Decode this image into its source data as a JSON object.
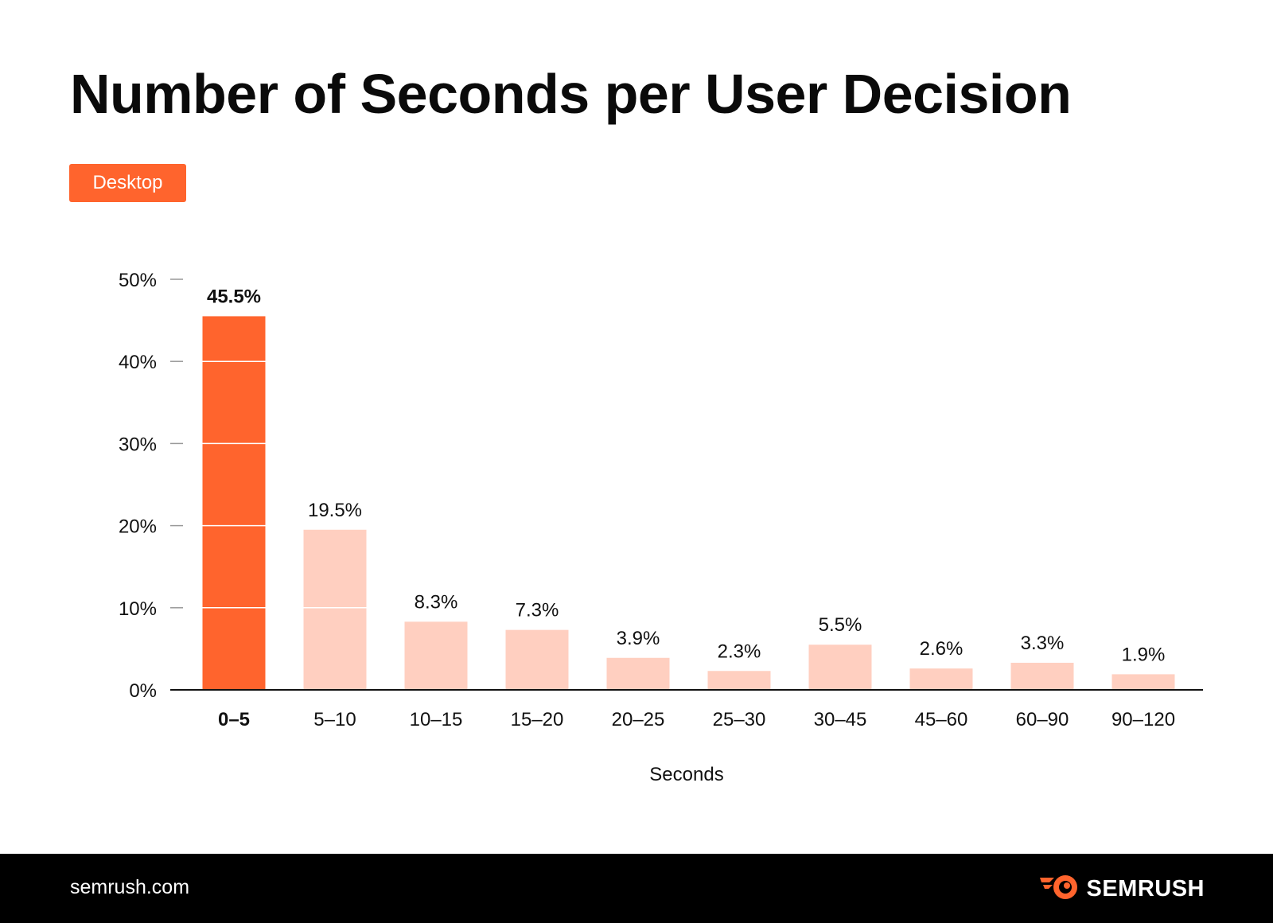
{
  "header": {
    "title": "Number of Seconds per User Decision"
  },
  "badge": {
    "label": "Desktop"
  },
  "footer": {
    "url": "semrush.com",
    "brand": "SEMRUSH",
    "logo_icon": "semrush-flame-logo-icon"
  },
  "colors": {
    "accent": "#FF642D",
    "muted_bar": "#FFCFC0",
    "axis": "#111111",
    "tick_mark": "#999999",
    "footer_bg": "#000000"
  },
  "chart_data": {
    "type": "bar",
    "categories": [
      "0–5",
      "5–10",
      "10–15",
      "15–20",
      "20–25",
      "25–30",
      "30–45",
      "45–60",
      "60–90",
      "90–120"
    ],
    "values": [
      45.5,
      19.5,
      8.3,
      7.3,
      3.9,
      2.3,
      5.5,
      2.6,
      3.3,
      1.9
    ],
    "labels": [
      "45.5%",
      "19.5%",
      "8.3%",
      "7.3%",
      "3.9%",
      "2.3%",
      "5.5%",
      "2.6%",
      "3.3%",
      "1.9%"
    ],
    "highlight_index": 0,
    "xlabel": "Seconds",
    "ylabel": "",
    "ylim": [
      0,
      50
    ],
    "yticks": [
      0,
      10,
      20,
      30,
      40,
      50
    ],
    "ytick_labels": [
      "0%",
      "10%",
      "20%",
      "30%",
      "40%",
      "50%"
    ],
    "gridlines": "white lines drawn across bars at each y tick"
  }
}
